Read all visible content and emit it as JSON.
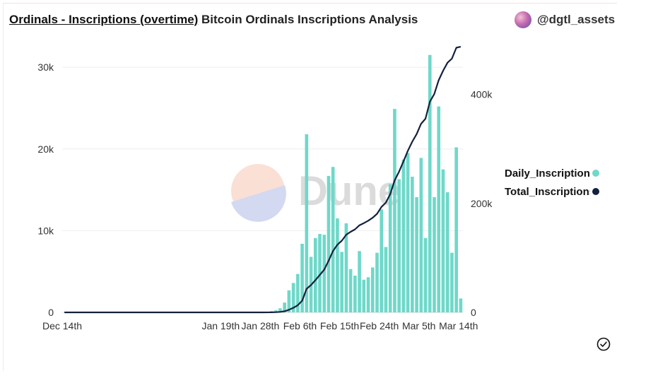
{
  "header": {
    "title": "Ordinals - Inscriptions (overtime)",
    "subtitle": "Bitcoin Ordinals Inscriptions Analysis",
    "author": "@dgtl_assets"
  },
  "watermark": "Dune",
  "icons": {
    "avatar": "user-avatar",
    "status": "check-circle-icon"
  },
  "colors": {
    "daily": "#6fd8c9",
    "total": "#14213d",
    "grid": "#eeeeee",
    "axis_text": "#333333"
  },
  "chart_data": {
    "type": "bar",
    "x_ticks": [
      "Dec 14th",
      "Jan 19th",
      "Jan 28th",
      "Feb 6th",
      "Feb 15th",
      "Feb 24th",
      "Mar 5th",
      "Mar 14th"
    ],
    "x_tick_dates": [
      "2022-12-14",
      "2023-01-19",
      "2023-01-28",
      "2023-02-06",
      "2023-02-15",
      "2023-02-24",
      "2023-03-05",
      "2023-03-14"
    ],
    "y_left": {
      "ticks": [
        0,
        10000,
        20000,
        30000
      ],
      "tick_labels": [
        "0",
        "10k",
        "20k",
        "30k"
      ],
      "lim": [
        0,
        32000
      ]
    },
    "y_right": {
      "ticks": [
        0,
        200000,
        400000
      ],
      "tick_labels": [
        "0",
        "200k",
        "400k"
      ],
      "lim": [
        0,
        480000
      ]
    },
    "grid": true,
    "legend_position": "right",
    "series": [
      {
        "name": "Daily_Inscriptions",
        "axis": "left",
        "render": "bar",
        "points": [
          [
            "2023-01-30",
            150
          ],
          [
            "2023-01-31",
            250
          ],
          [
            "2023-02-01",
            500
          ],
          [
            "2023-02-02",
            1200
          ],
          [
            "2023-02-03",
            2700
          ],
          [
            "2023-02-04",
            3600
          ],
          [
            "2023-02-05",
            4700
          ],
          [
            "2023-02-06",
            8400
          ],
          [
            "2023-02-07",
            21800
          ],
          [
            "2023-02-08",
            6800
          ],
          [
            "2023-02-09",
            9100
          ],
          [
            "2023-02-10",
            9600
          ],
          [
            "2023-02-11",
            9500
          ],
          [
            "2023-02-12",
            16700
          ],
          [
            "2023-02-13",
            17800
          ],
          [
            "2023-02-14",
            11500
          ],
          [
            "2023-02-15",
            7400
          ],
          [
            "2023-02-16",
            10900
          ],
          [
            "2023-02-17",
            5300
          ],
          [
            "2023-02-18",
            4500
          ],
          [
            "2023-02-19",
            7500
          ],
          [
            "2023-02-20",
            4000
          ],
          [
            "2023-02-21",
            4300
          ],
          [
            "2023-02-22",
            5500
          ],
          [
            "2023-02-23",
            7300
          ],
          [
            "2023-02-24",
            12600
          ],
          [
            "2023-02-25",
            8000
          ],
          [
            "2023-02-26",
            15700
          ],
          [
            "2023-02-27",
            24900
          ],
          [
            "2023-02-28",
            16300
          ],
          [
            "2023-03-01",
            18700
          ],
          [
            "2023-03-02",
            19500
          ],
          [
            "2023-03-03",
            16600
          ],
          [
            "2023-03-04",
            14100
          ],
          [
            "2023-03-05",
            18900
          ],
          [
            "2023-03-06",
            9100
          ],
          [
            "2023-03-07",
            31500
          ],
          [
            "2023-03-08",
            14100
          ],
          [
            "2023-03-09",
            25200
          ],
          [
            "2023-03-10",
            17500
          ],
          [
            "2023-03-11",
            14700
          ],
          [
            "2023-03-12",
            7300
          ],
          [
            "2023-03-13",
            20200
          ],
          [
            "2023-03-14",
            1700
          ]
        ]
      },
      {
        "name": "Total_Inscriptions",
        "axis": "right",
        "render": "line",
        "points": [
          [
            "2022-12-14",
            0
          ],
          [
            "2023-01-19",
            0
          ],
          [
            "2023-01-28",
            0
          ],
          [
            "2023-01-30",
            150
          ],
          [
            "2023-01-31",
            400
          ],
          [
            "2023-02-01",
            900
          ],
          [
            "2023-02-02",
            2100
          ],
          [
            "2023-02-03",
            4800
          ],
          [
            "2023-02-04",
            8400
          ],
          [
            "2023-02-05",
            13100
          ],
          [
            "2023-02-06",
            21500
          ],
          [
            "2023-02-07",
            43300
          ],
          [
            "2023-02-08",
            50100
          ],
          [
            "2023-02-09",
            59200
          ],
          [
            "2023-02-10",
            68800
          ],
          [
            "2023-02-11",
            78300
          ],
          [
            "2023-02-12",
            95000
          ],
          [
            "2023-02-13",
            112800
          ],
          [
            "2023-02-14",
            124300
          ],
          [
            "2023-02-15",
            131700
          ],
          [
            "2023-02-16",
            142600
          ],
          [
            "2023-02-17",
            147900
          ],
          [
            "2023-02-18",
            152400
          ],
          [
            "2023-02-19",
            159900
          ],
          [
            "2023-02-20",
            163900
          ],
          [
            "2023-02-21",
            168200
          ],
          [
            "2023-02-22",
            173700
          ],
          [
            "2023-02-23",
            181000
          ],
          [
            "2023-02-24",
            193600
          ],
          [
            "2023-02-25",
            201600
          ],
          [
            "2023-02-26",
            217300
          ],
          [
            "2023-02-27",
            242200
          ],
          [
            "2023-02-28",
            258500
          ],
          [
            "2023-03-01",
            277200
          ],
          [
            "2023-03-02",
            296700
          ],
          [
            "2023-03-03",
            313300
          ],
          [
            "2023-03-04",
            327400
          ],
          [
            "2023-03-05",
            346300
          ],
          [
            "2023-03-06",
            355400
          ],
          [
            "2023-03-07",
            386900
          ],
          [
            "2023-03-08",
            401000
          ],
          [
            "2023-03-09",
            426200
          ],
          [
            "2023-03-10",
            443700
          ],
          [
            "2023-03-11",
            458400
          ],
          [
            "2023-03-12",
            465700
          ],
          [
            "2023-03-13",
            485900
          ],
          [
            "2023-03-14",
            487600
          ]
        ]
      }
    ]
  }
}
